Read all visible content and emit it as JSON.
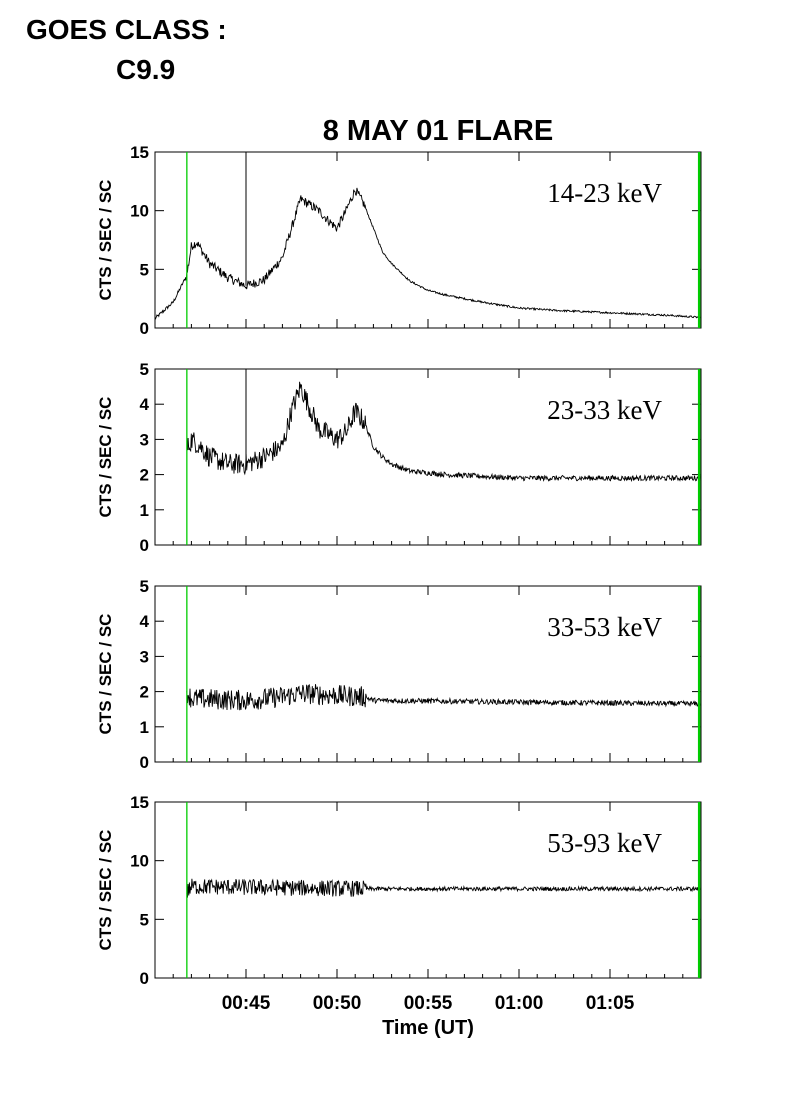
{
  "header": {
    "goes_label": "GOES CLASS :",
    "goes_class": "C9.9"
  },
  "colors": {
    "marker": "#00cc00",
    "trace": "#000000",
    "axes": "#000000"
  },
  "chart_data": {
    "type": "line",
    "title": "8 MAY 01 FLARE",
    "xlabel": "Time (UT)",
    "x_units": "minutes after 00:40 UT",
    "xlim": [
      0.0,
      30.0
    ],
    "x_ticks": [
      5,
      10,
      15,
      20,
      25
    ],
    "x_tick_labels": [
      "00:45",
      "00:50",
      "00:55",
      "01:00",
      "01:05"
    ],
    "green_markers_x": [
      1.75,
      29.9
    ],
    "spike_x": 5.0,
    "panels": [
      {
        "band": "14-23 keV",
        "ylabel": "CTS / SEC / SC",
        "ylim": [
          0,
          15
        ],
        "y_ticks": [
          0,
          5,
          10,
          15
        ],
        "noise_x_end": 11.6,
        "noise_amp": 0.4,
        "curve_x": [
          0.0,
          1.0,
          1.75,
          2.0,
          2.3,
          3.0,
          4.0,
          5.0,
          6.0,
          7.0,
          7.5,
          8.0,
          9.0,
          9.5,
          10.0,
          10.5,
          11.0,
          11.5,
          12.0,
          12.5,
          13.0,
          14.0,
          15.0,
          16.0,
          18.0,
          20.0,
          22.0,
          25.0,
          28.0,
          30.0
        ],
        "curve_y": [
          0.8,
          2.2,
          4.5,
          7.0,
          7.3,
          5.5,
          4.3,
          3.6,
          4.1,
          6.0,
          8.5,
          11.0,
          10.0,
          9.2,
          8.5,
          10.0,
          11.8,
          10.5,
          8.5,
          6.5,
          5.5,
          4.0,
          3.2,
          2.8,
          2.2,
          1.7,
          1.5,
          1.3,
          1.1,
          0.9
        ],
        "spike_y": 14.5
      },
      {
        "band": "23-33 keV",
        "ylabel": "CTS / SEC / SC",
        "ylim": [
          0,
          5
        ],
        "y_ticks": [
          0,
          1,
          2,
          3,
          4,
          5
        ],
        "noise_x_end": 11.6,
        "noise_amp": 0.3,
        "curve_x": [
          1.75,
          2.0,
          2.5,
          3.0,
          4.0,
          5.0,
          6.0,
          7.0,
          7.5,
          8.0,
          9.0,
          10.0,
          10.5,
          11.0,
          11.5,
          12.0,
          12.5,
          13.0,
          14.0,
          16.0,
          20.0,
          25.0,
          30.0
        ],
        "curve_y": [
          2.7,
          3.0,
          2.8,
          2.5,
          2.3,
          2.3,
          2.5,
          2.8,
          3.8,
          4.5,
          3.3,
          3.0,
          3.2,
          3.8,
          3.5,
          2.8,
          2.5,
          2.3,
          2.1,
          2.0,
          1.9,
          1.9,
          1.9
        ],
        "spike_y": 4.9
      },
      {
        "band": "33-53 keV",
        "ylabel": "CTS / SEC / SC",
        "ylim": [
          0,
          5
        ],
        "y_ticks": [
          0,
          1,
          2,
          3,
          4,
          5
        ],
        "noise_x_end": 11.6,
        "noise_amp": 0.3,
        "curve_x": [
          1.75,
          2.0,
          5.0,
          7.0,
          8.0,
          11.5,
          12.0,
          20.0,
          30.0
        ],
        "curve_y": [
          2.0,
          1.8,
          1.75,
          1.85,
          1.95,
          1.85,
          1.75,
          1.7,
          1.65
        ]
      },
      {
        "band": "53-93 keV",
        "ylabel": "CTS / SEC / SC",
        "ylim": [
          0,
          15
        ],
        "y_ticks": [
          0,
          5,
          10,
          15
        ],
        "noise_x_end": 11.6,
        "noise_amp": 0.7,
        "curve_x": [
          1.75,
          2.0,
          11.5,
          12.0,
          20.0,
          30.0
        ],
        "curve_y": [
          7.3,
          7.8,
          7.6,
          7.6,
          7.6,
          7.6
        ]
      }
    ]
  }
}
